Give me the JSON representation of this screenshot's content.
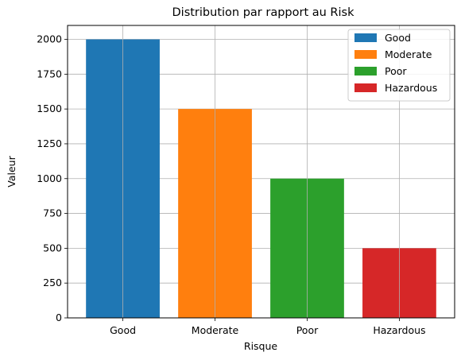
{
  "chart_data": {
    "type": "bar",
    "title": "Distribution par rapport au Risk",
    "xlabel": "Risque",
    "ylabel": "Valeur",
    "categories": [
      "Good",
      "Moderate",
      "Poor",
      "Hazardous"
    ],
    "values": [
      2000,
      1500,
      1000,
      500
    ],
    "colors": [
      "#1f77b4",
      "#ff7f0e",
      "#2ca02c",
      "#d62728"
    ],
    "ylim": [
      0,
      2100
    ],
    "yticks": [
      0,
      250,
      500,
      750,
      1000,
      1250,
      1500,
      1750,
      2000
    ],
    "grid": true,
    "legend": {
      "placement": "top-right",
      "entries": [
        "Good",
        "Moderate",
        "Poor",
        "Hazardous"
      ]
    }
  }
}
